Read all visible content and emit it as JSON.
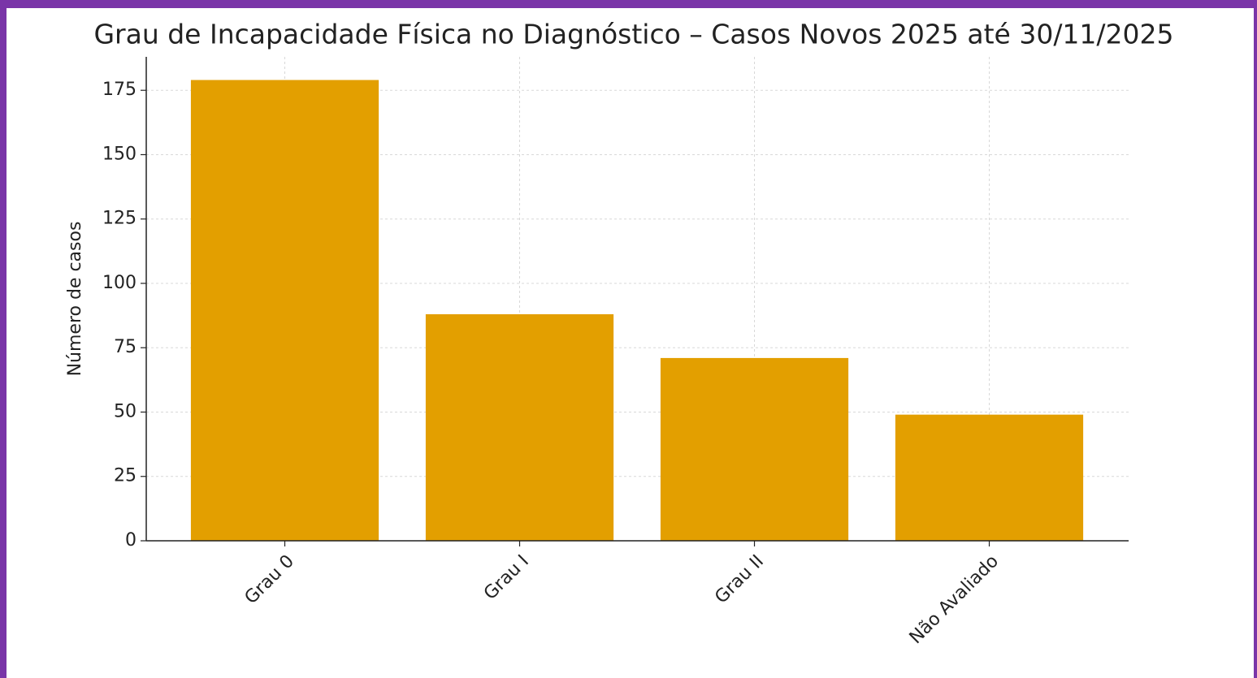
{
  "chart_data": {
    "type": "bar",
    "title": "Grau de Incapacidade Física no Diagnóstico – Casos Novos 2025 até 30/11/2025",
    "y_label": "Número de casos",
    "categories": [
      "Grau 0",
      "Grau I",
      "Grau II",
      "Não Avaliado"
    ],
    "values": [
      179,
      88,
      71,
      49
    ],
    "color": "#e39f00",
    "ylim": [
      0,
      188
    ],
    "yticks": [
      0,
      25,
      50,
      75,
      100,
      125,
      150,
      175
    ],
    "grid": true
  }
}
